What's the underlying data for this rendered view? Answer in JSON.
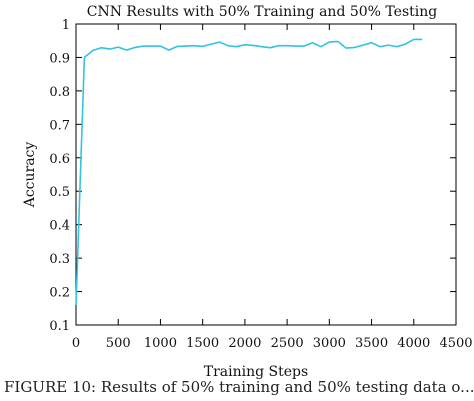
{
  "chart_data": {
    "type": "line",
    "title": "CNN Results with 50% Training and 50% Testing",
    "xlabel": "Training Steps",
    "ylabel": "Accuracy",
    "xlim": [
      0,
      4500
    ],
    "ylim": [
      0.1,
      1.0
    ],
    "xticks": [
      0,
      500,
      1000,
      1500,
      2000,
      2500,
      3000,
      3500,
      4000,
      4500
    ],
    "yticks": [
      0.1,
      0.2,
      0.3,
      0.4,
      0.5,
      0.6,
      0.7,
      0.8,
      0.9,
      1.0
    ],
    "ytick_labels": [
      "0.1",
      "0.2",
      "0.3",
      "0.4",
      "0.5",
      "0.6",
      "0.7",
      "0.8",
      "0.9",
      "1"
    ],
    "grid": false,
    "line_color": "#33c3e0",
    "series": [
      {
        "x": [
          0,
          100,
          200,
          300,
          400,
          500,
          600,
          700,
          800,
          900,
          1000,
          1100,
          1200,
          1300,
          1400,
          1500,
          1600,
          1700,
          1800,
          1900,
          2000,
          2100,
          2200,
          2300,
          2400,
          2500,
          2600,
          2700,
          2800,
          2900,
          3000,
          3100,
          3200,
          3300,
          3400,
          3500,
          3600,
          3700,
          3800,
          3900,
          4000,
          4100
        ],
        "y": [
          0.16,
          0.9,
          0.921,
          0.929,
          0.925,
          0.931,
          0.922,
          0.93,
          0.934,
          0.934,
          0.934,
          0.922,
          0.933,
          0.934,
          0.935,
          0.933,
          0.94,
          0.946,
          0.935,
          0.932,
          0.938,
          0.936,
          0.932,
          0.929,
          0.935,
          0.935,
          0.934,
          0.934,
          0.944,
          0.932,
          0.946,
          0.948,
          0.928,
          0.93,
          0.937,
          0.944,
          0.932,
          0.937,
          0.932,
          0.94,
          0.954,
          0.954
        ]
      }
    ]
  },
  "caption": "FIGURE 10: Results of 50% training and 50% testing data o..."
}
